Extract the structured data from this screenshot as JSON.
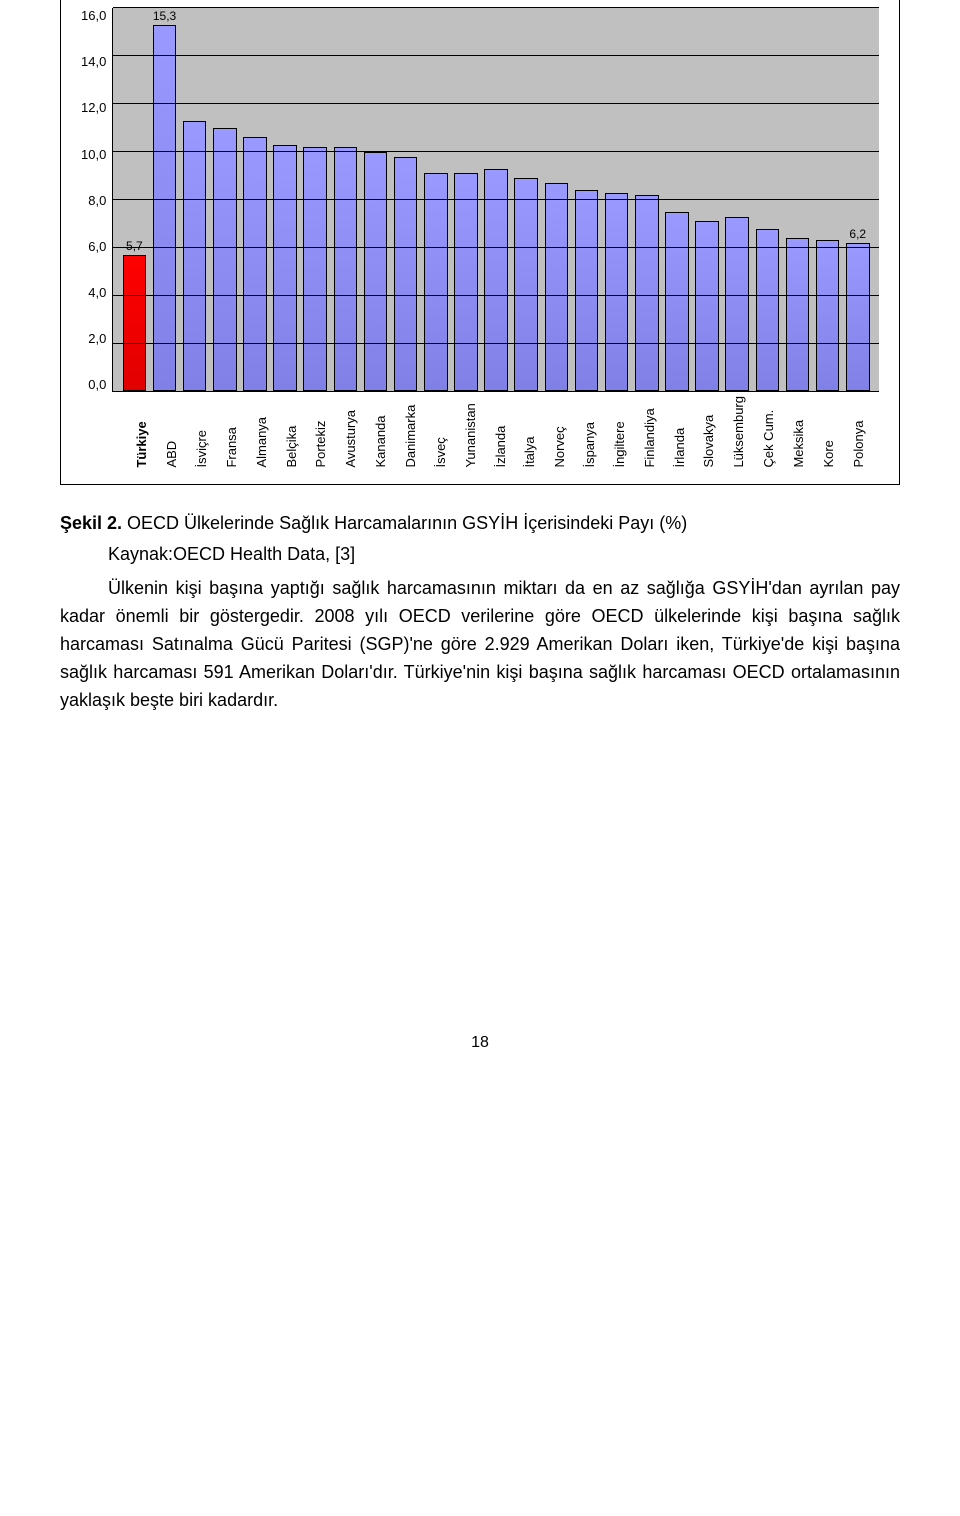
{
  "chart": {
    "type": "bar",
    "y": {
      "max": 16,
      "step": 2,
      "decimals": 1
    },
    "plot_bg": "#c0c0c0",
    "grid_color": "#000000",
    "default_bar_fill": "#9999ff",
    "default_bar_border": "#000000",
    "bars": [
      {
        "label": "Türkiye",
        "value": 5.7,
        "show_value": "5,7",
        "fill": "#ff0000",
        "bold": true
      },
      {
        "label": "ABD",
        "value": 15.3,
        "show_value": "15,3"
      },
      {
        "label": "İsviçre",
        "value": 11.3
      },
      {
        "label": "Fransa",
        "value": 11.0
      },
      {
        "label": "Almanya",
        "value": 10.6
      },
      {
        "label": "Belçika",
        "value": 10.3
      },
      {
        "label": "Portekiz",
        "value": 10.2
      },
      {
        "label": "Avusturya",
        "value": 10.2
      },
      {
        "label": "Kananda",
        "value": 10.0
      },
      {
        "label": "Danimarka",
        "value": 9.8
      },
      {
        "label": "İsveç",
        "value": 9.1
      },
      {
        "label": "Yunanistan",
        "value": 9.1
      },
      {
        "label": "İzlanda",
        "value": 9.3
      },
      {
        "label": "İtalya",
        "value": 8.9
      },
      {
        "label": "Norveç",
        "value": 8.7
      },
      {
        "label": "İspanya",
        "value": 8.4
      },
      {
        "label": "İngiltere",
        "value": 8.3
      },
      {
        "label": "Finlandiya",
        "value": 8.2
      },
      {
        "label": "İrlanda",
        "value": 7.5
      },
      {
        "label": "Slovakya",
        "value": 7.1
      },
      {
        "label": "Lüksemburg",
        "value": 7.3
      },
      {
        "label": "Çek Cum.",
        "value": 6.8
      },
      {
        "label": "Meksika",
        "value": 6.4
      },
      {
        "label": "Kore",
        "value": 6.3
      },
      {
        "label": "Polonya",
        "value": 6.2,
        "show_value": "6,2"
      }
    ]
  },
  "caption_bold": "Şekil 2. ",
  "caption_rest": "OECD Ülkelerinde Sağlık Harcamalarının GSYİH İçerisindeki Payı (%)",
  "caption_source": "Kaynak:OECD Health Data, [3]",
  "body": "Ülkenin kişi başına yaptığı sağlık harcamasının miktarı da en az sağlığa GSYİH'dan ayrılan pay kadar önemli bir göstergedir. 2008 yılı OECD verilerine göre OECD ülkelerinde kişi başına sağlık harcaması Satınalma Gücü Paritesi (SGP)'ne göre 2.929  Amerikan Doları iken, Türkiye'de kişi başına sağlık harcaması 591 Amerikan Doları'dır. Türkiye'nin kişi başına sağlık harcaması OECD ortalamasının yaklaşık beşte biri kadardır.",
  "page_number": "18"
}
